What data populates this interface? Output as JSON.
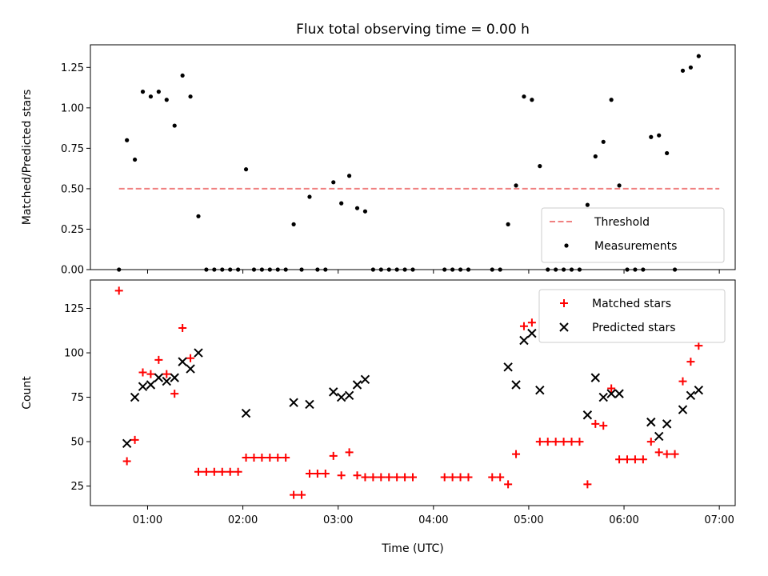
{
  "chart_data": [
    {
      "type": "scatter",
      "title": "Flux total observing time = 0.00 h",
      "xlabel": "",
      "ylabel": "Matched/Predicted stars",
      "xlim": [
        "00:24",
        "07:10"
      ],
      "ylim": [
        0.0,
        1.39
      ],
      "yticks": [
        0.0,
        0.25,
        0.5,
        0.75,
        1.0,
        1.25
      ],
      "ytick_labels": [
        "0.00",
        "0.25",
        "0.50",
        "0.75",
        "1.00",
        "1.25"
      ],
      "threshold": {
        "name": "Threshold",
        "value": 0.5,
        "x_range": [
          "00:42",
          "07:00"
        ],
        "color": "#f08080",
        "style": "dashed"
      },
      "legend": {
        "placement": "bottom-right",
        "entries": [
          "Threshold",
          "Measurements"
        ]
      },
      "series": [
        {
          "name": "Measurements",
          "color": "#000000",
          "marker": "dot",
          "points": [
            [
              "00:42",
              0.0
            ],
            [
              "00:47",
              0.8
            ],
            [
              "00:52",
              0.68
            ],
            [
              "00:57",
              1.1
            ],
            [
              "01:02",
              1.07
            ],
            [
              "01:07",
              1.1
            ],
            [
              "01:12",
              1.05
            ],
            [
              "01:17",
              0.89
            ],
            [
              "01:22",
              1.2
            ],
            [
              "01:27",
              1.07
            ],
            [
              "01:32",
              0.33
            ],
            [
              "01:37",
              0.0
            ],
            [
              "01:42",
              0.0
            ],
            [
              "01:47",
              0.0
            ],
            [
              "01:52",
              0.0
            ],
            [
              "01:57",
              0.0
            ],
            [
              "02:02",
              0.62
            ],
            [
              "02:07",
              0.0
            ],
            [
              "02:12",
              0.0
            ],
            [
              "02:17",
              0.0
            ],
            [
              "02:22",
              0.0
            ],
            [
              "02:27",
              0.0
            ],
            [
              "02:32",
              0.28
            ],
            [
              "02:37",
              0.0
            ],
            [
              "02:42",
              0.45
            ],
            [
              "02:47",
              0.0
            ],
            [
              "02:52",
              0.0
            ],
            [
              "02:57",
              0.54
            ],
            [
              "03:02",
              0.41
            ],
            [
              "03:07",
              0.58
            ],
            [
              "03:12",
              0.38
            ],
            [
              "03:17",
              0.36
            ],
            [
              "03:22",
              0.0
            ],
            [
              "03:27",
              0.0
            ],
            [
              "03:32",
              0.0
            ],
            [
              "03:37",
              0.0
            ],
            [
              "03:42",
              0.0
            ],
            [
              "03:47",
              0.0
            ],
            [
              "04:07",
              0.0
            ],
            [
              "04:12",
              0.0
            ],
            [
              "04:17",
              0.0
            ],
            [
              "04:22",
              0.0
            ],
            [
              "04:37",
              0.0
            ],
            [
              "04:42",
              0.0
            ],
            [
              "04:47",
              0.28
            ],
            [
              "04:52",
              0.52
            ],
            [
              "04:57",
              1.07
            ],
            [
              "05:02",
              1.05
            ],
            [
              "05:07",
              0.64
            ],
            [
              "05:12",
              0.0
            ],
            [
              "05:17",
              0.0
            ],
            [
              "05:22",
              0.0
            ],
            [
              "05:27",
              0.0
            ],
            [
              "05:32",
              0.0
            ],
            [
              "05:37",
              0.4
            ],
            [
              "05:42",
              0.7
            ],
            [
              "05:47",
              0.79
            ],
            [
              "05:52",
              1.05
            ],
            [
              "05:57",
              0.52
            ],
            [
              "06:02",
              0.0
            ],
            [
              "06:07",
              0.0
            ],
            [
              "06:12",
              0.0
            ],
            [
              "06:17",
              0.82
            ],
            [
              "06:22",
              0.83
            ],
            [
              "06:27",
              0.72
            ],
            [
              "06:32",
              0.0
            ],
            [
              "06:37",
              1.23
            ],
            [
              "06:42",
              1.25
            ],
            [
              "06:47",
              1.32
            ]
          ]
        }
      ]
    },
    {
      "type": "scatter",
      "title": "",
      "xlabel": "Time (UTC)",
      "ylabel": "Count",
      "xlim": [
        "00:24",
        "07:10"
      ],
      "ylim": [
        14,
        141
      ],
      "yticks": [
        25,
        50,
        75,
        100,
        125
      ],
      "ytick_labels": [
        "25",
        "50",
        "75",
        "100",
        "125"
      ],
      "xticks": [
        "01:00",
        "02:00",
        "03:00",
        "04:00",
        "05:00",
        "06:00",
        "07:00"
      ],
      "xtick_labels": [
        "01:00",
        "02:00",
        "03:00",
        "04:00",
        "05:00",
        "06:00",
        "07:00"
      ],
      "legend": {
        "placement": "top-right",
        "entries": [
          "Matched stars",
          "Predicted stars"
        ]
      },
      "series": [
        {
          "name": "Matched stars",
          "color": "#ff0000",
          "marker": "plus",
          "points": [
            [
              "00:42",
              135
            ],
            [
              "00:47",
              39
            ],
            [
              "00:52",
              51
            ],
            [
              "00:57",
              89
            ],
            [
              "01:02",
              88
            ],
            [
              "01:07",
              96
            ],
            [
              "01:12",
              88
            ],
            [
              "01:17",
              77
            ],
            [
              "01:22",
              114
            ],
            [
              "01:27",
              97
            ],
            [
              "01:32",
              33
            ],
            [
              "01:37",
              33
            ],
            [
              "01:42",
              33
            ],
            [
              "01:47",
              33
            ],
            [
              "01:52",
              33
            ],
            [
              "01:57",
              33
            ],
            [
              "02:02",
              41
            ],
            [
              "02:07",
              41
            ],
            [
              "02:12",
              41
            ],
            [
              "02:17",
              41
            ],
            [
              "02:22",
              41
            ],
            [
              "02:27",
              41
            ],
            [
              "02:32",
              20
            ],
            [
              "02:37",
              20
            ],
            [
              "02:42",
              32
            ],
            [
              "02:47",
              32
            ],
            [
              "02:52",
              32
            ],
            [
              "02:57",
              42
            ],
            [
              "03:02",
              31
            ],
            [
              "03:07",
              44
            ],
            [
              "03:12",
              31
            ],
            [
              "03:17",
              30
            ],
            [
              "03:22",
              30
            ],
            [
              "03:27",
              30
            ],
            [
              "03:32",
              30
            ],
            [
              "03:37",
              30
            ],
            [
              "03:42",
              30
            ],
            [
              "03:47",
              30
            ],
            [
              "04:07",
              30
            ],
            [
              "04:12",
              30
            ],
            [
              "04:17",
              30
            ],
            [
              "04:22",
              30
            ],
            [
              "04:37",
              30
            ],
            [
              "04:42",
              30
            ],
            [
              "04:47",
              26
            ],
            [
              "04:52",
              43
            ],
            [
              "04:57",
              115
            ],
            [
              "05:02",
              117
            ],
            [
              "05:07",
              50
            ],
            [
              "05:12",
              50
            ],
            [
              "05:17",
              50
            ],
            [
              "05:22",
              50
            ],
            [
              "05:27",
              50
            ],
            [
              "05:32",
              50
            ],
            [
              "05:37",
              26
            ],
            [
              "05:42",
              60
            ],
            [
              "05:47",
              59
            ],
            [
              "05:52",
              80
            ],
            [
              "05:57",
              40
            ],
            [
              "06:02",
              40
            ],
            [
              "06:07",
              40
            ],
            [
              "06:12",
              40
            ],
            [
              "06:17",
              50
            ],
            [
              "06:22",
              44
            ],
            [
              "06:27",
              43
            ],
            [
              "06:32",
              43
            ],
            [
              "06:37",
              84
            ],
            [
              "06:42",
              95
            ],
            [
              "06:47",
              104
            ]
          ]
        },
        {
          "name": "Predicted stars",
          "color": "#000000",
          "marker": "x",
          "points": [
            [
              "00:47",
              49
            ],
            [
              "00:52",
              75
            ],
            [
              "00:57",
              81
            ],
            [
              "01:02",
              82
            ],
            [
              "01:07",
              86
            ],
            [
              "01:12",
              84
            ],
            [
              "01:17",
              86
            ],
            [
              "01:22",
              95
            ],
            [
              "01:27",
              91
            ],
            [
              "01:32",
              100
            ],
            [
              "02:02",
              66
            ],
            [
              "02:32",
              72
            ],
            [
              "02:42",
              71
            ],
            [
              "02:57",
              78
            ],
            [
              "03:02",
              75
            ],
            [
              "03:07",
              76
            ],
            [
              "03:12",
              82
            ],
            [
              "03:17",
              85
            ],
            [
              "04:47",
              92
            ],
            [
              "04:52",
              82
            ],
            [
              "04:57",
              107
            ],
            [
              "05:02",
              111
            ],
            [
              "05:07",
              79
            ],
            [
              "05:37",
              65
            ],
            [
              "05:42",
              86
            ],
            [
              "05:47",
              75
            ],
            [
              "05:52",
              77
            ],
            [
              "05:57",
              77
            ],
            [
              "06:17",
              61
            ],
            [
              "06:22",
              53
            ],
            [
              "06:27",
              60
            ],
            [
              "06:37",
              68
            ],
            [
              "06:42",
              76
            ],
            [
              "06:47",
              79
            ]
          ]
        }
      ]
    }
  ]
}
